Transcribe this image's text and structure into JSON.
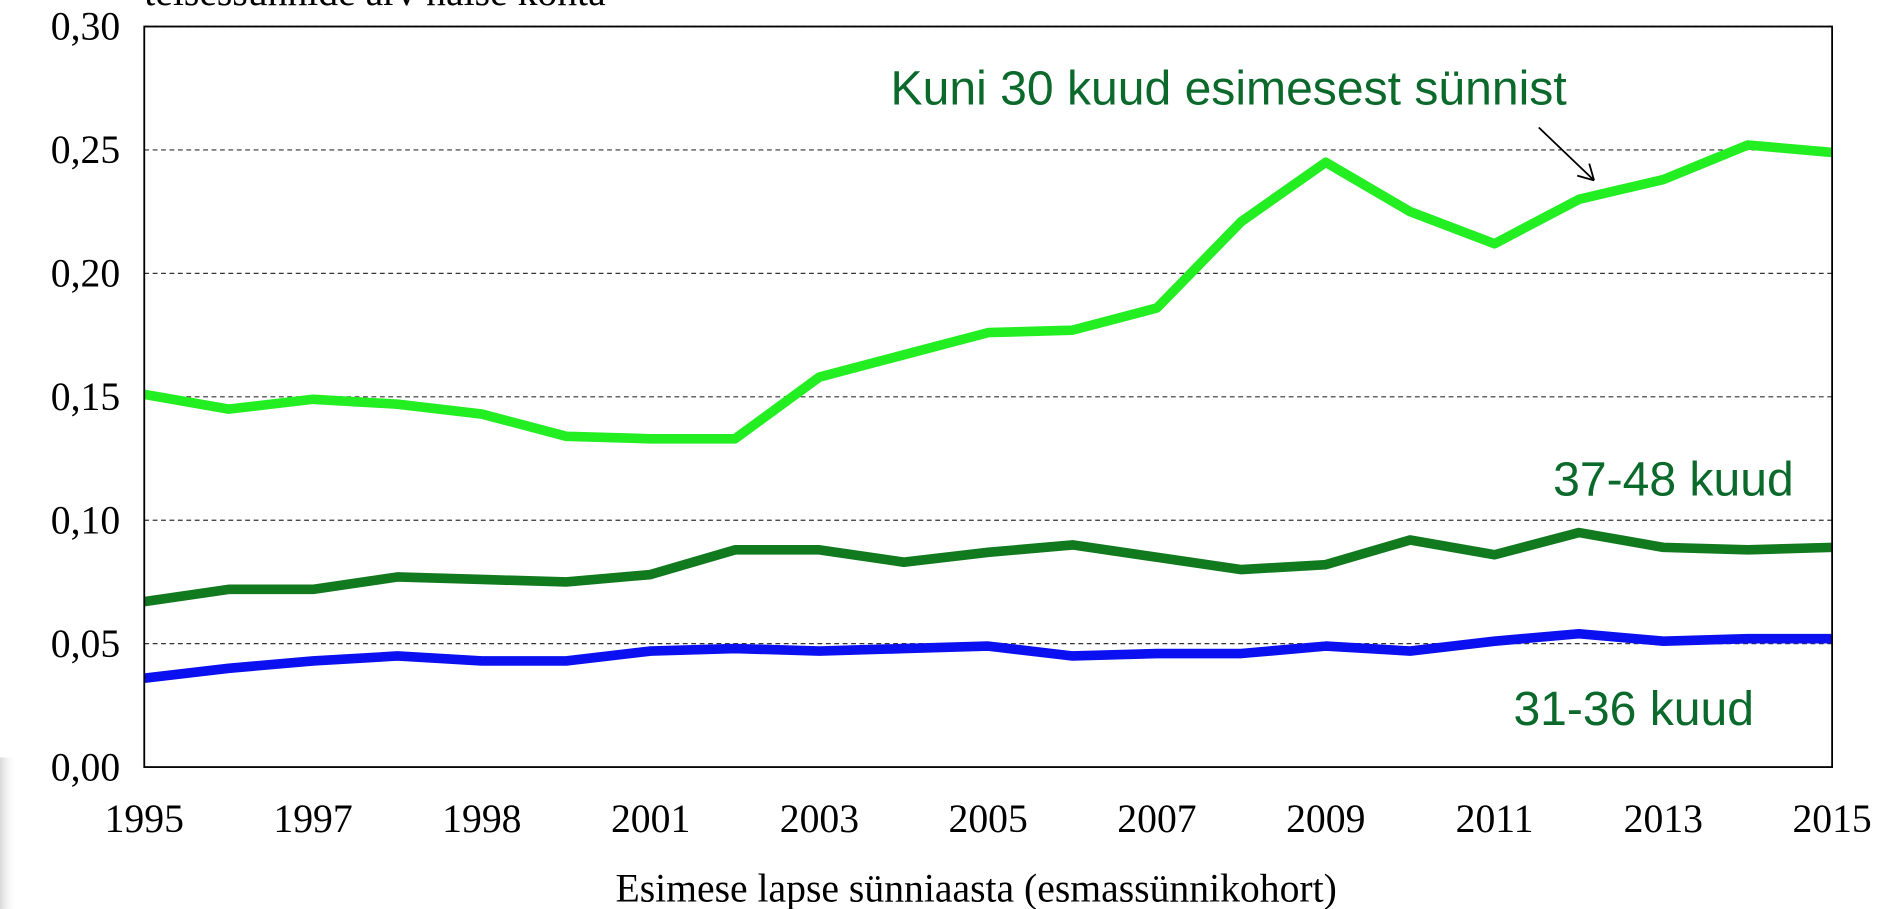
{
  "chart_data": {
    "type": "line",
    "title": "teisessünnide arv naise kohta",
    "x_label": "Esimese lapse sünniaasta (esmassünnikohort)",
    "categories": [
      "1995",
      null,
      "1997",
      null,
      "1998",
      null,
      "2001",
      null,
      "2003",
      null,
      "2005",
      null,
      "2007",
      null,
      "2009",
      null,
      "2011",
      null,
      "2013",
      null,
      "2015"
    ],
    "ylim": [
      0,
      0.3
    ],
    "yticks": [
      {
        "value": 0,
        "label": "0,00"
      },
      {
        "value": 0.05,
        "label": "0,05"
      },
      {
        "value": 0.1,
        "label": "0,10"
      },
      {
        "value": 0.15,
        "label": "0,15"
      },
      {
        "value": 0.2,
        "label": "0,20"
      },
      {
        "value": 0.25,
        "label": "0,25"
      },
      {
        "value": 0.3,
        "label": "0,30"
      }
    ],
    "grid": true,
    "series": [
      {
        "name": "Kuni 30 kuud esimesest sünnist",
        "color": "#22ee22",
        "values": [
          0.151,
          0.145,
          0.149,
          0.147,
          0.143,
          0.134,
          0.133,
          0.133,
          0.158,
          0.167,
          0.176,
          0.177,
          0.186,
          0.221,
          0.245,
          0.225,
          0.212,
          0.23,
          0.238,
          0.252,
          0.249
        ]
      },
      {
        "name": "37-48 kuud",
        "color": "#117a1e",
        "values": [
          0.067,
          0.072,
          0.072,
          0.077,
          0.076,
          0.075,
          0.078,
          0.088,
          0.088,
          0.083,
          0.087,
          0.09,
          0.085,
          0.08,
          0.082,
          0.092,
          0.086,
          0.095,
          0.089,
          0.088,
          0.089
        ]
      },
      {
        "name": "31-36 kuud",
        "color": "#0a10f0",
        "values": [
          0.036,
          0.04,
          0.043,
          0.045,
          0.043,
          0.043,
          0.047,
          0.048,
          0.047,
          0.048,
          0.049,
          0.045,
          0.046,
          0.046,
          0.049,
          0.047,
          0.051,
          0.054,
          0.051,
          0.052,
          0.052
        ]
      }
    ]
  }
}
